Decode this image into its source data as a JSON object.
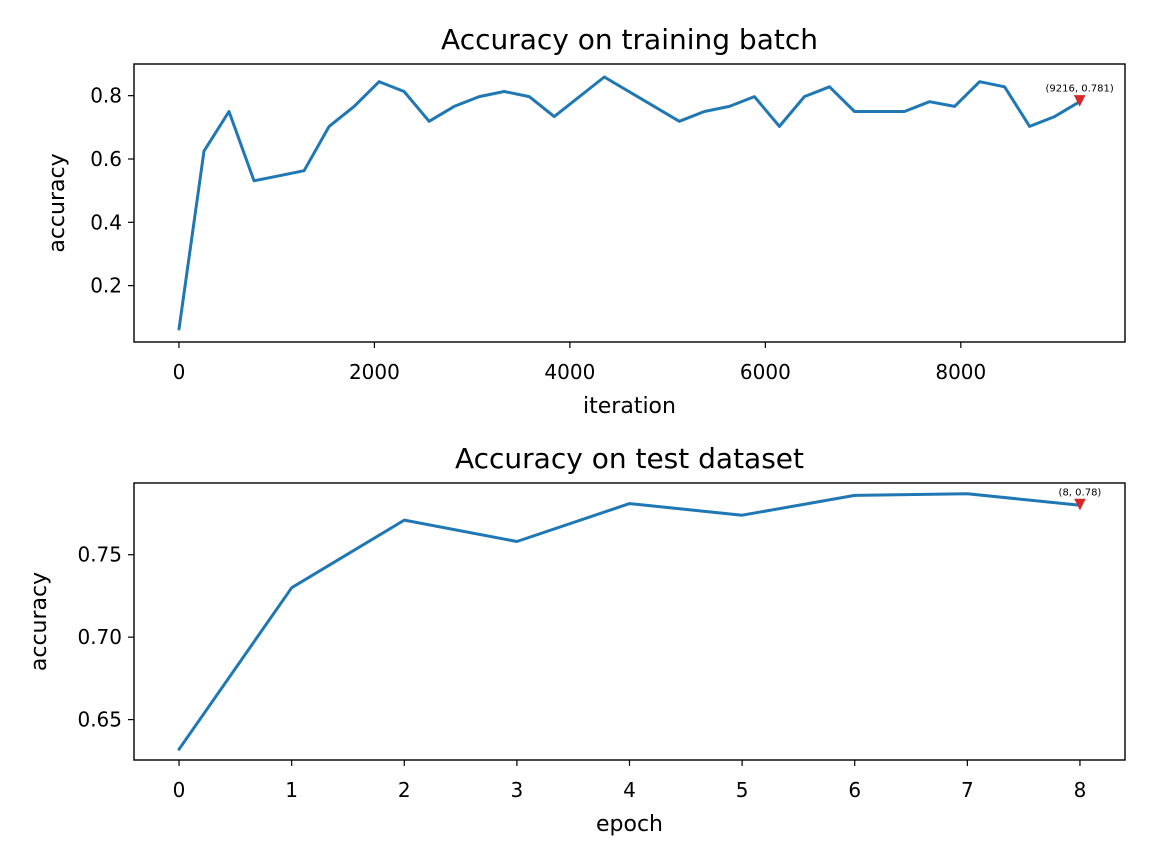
{
  "chart_data": [
    {
      "type": "line",
      "title": "Accuracy on training batch",
      "xlabel": "iteration",
      "ylabel": "accuracy",
      "xlim": [
        -460,
        9680
      ],
      "ylim": [
        0.022,
        0.9
      ],
      "xticks": [
        0,
        2000,
        4000,
        6000,
        8000
      ],
      "xtick_labels": [
        "0",
        "2000",
        "4000",
        "6000",
        "8000"
      ],
      "yticks": [
        0.2,
        0.4,
        0.6,
        0.8
      ],
      "ytick_labels": [
        "0.2",
        "0.4",
        "0.6",
        "0.8"
      ],
      "grid": false,
      "series": [
        {
          "x": [
            0,
            256,
            512,
            768,
            1024,
            1280,
            1536,
            1792,
            2048,
            2304,
            2560,
            2816,
            3072,
            3328,
            3584,
            3840,
            4352,
            5120,
            5376,
            5632,
            5888,
            6144,
            6400,
            6656,
            6912,
            7168,
            7424,
            7680,
            7936,
            8192,
            8448,
            8704,
            8960,
            9216
          ],
          "y": [
            0.063,
            0.625,
            0.75,
            0.531,
            0.547,
            0.563,
            0.703,
            0.766,
            0.844,
            0.813,
            0.719,
            0.766,
            0.797,
            0.813,
            0.797,
            0.734,
            0.859,
            0.719,
            0.75,
            0.766,
            0.797,
            0.703,
            0.797,
            0.828,
            0.75,
            0.75,
            0.75,
            0.781,
            0.766,
            0.844,
            0.828,
            0.703,
            0.734,
            0.781
          ]
        }
      ],
      "annotation": {
        "x": 9216,
        "y": 0.781,
        "text": "(9216, 0.781)"
      }
    },
    {
      "type": "line",
      "title": "Accuracy on test dataset",
      "xlabel": "epoch",
      "ylabel": "accuracy",
      "xlim": [
        -0.4,
        8.4
      ],
      "ylim": [
        0.6255,
        0.7935
      ],
      "xticks": [
        0,
        1,
        2,
        3,
        4,
        5,
        6,
        7,
        8
      ],
      "xtick_labels": [
        "0",
        "1",
        "2",
        "3",
        "4",
        "5",
        "6",
        "7",
        "8"
      ],
      "yticks": [
        0.65,
        0.7,
        0.75
      ],
      "ytick_labels": [
        "0.65",
        "0.70",
        "0.75"
      ],
      "grid": false,
      "series": [
        {
          "x": [
            0,
            1,
            2,
            3,
            4,
            5,
            6,
            7,
            8
          ],
          "y": [
            0.632,
            0.73,
            0.771,
            0.758,
            0.781,
            0.774,
            0.786,
            0.787,
            0.78
          ]
        }
      ],
      "annotation": {
        "x": 8,
        "y": 0.78,
        "text": "(8, 0.78)"
      }
    }
  ]
}
